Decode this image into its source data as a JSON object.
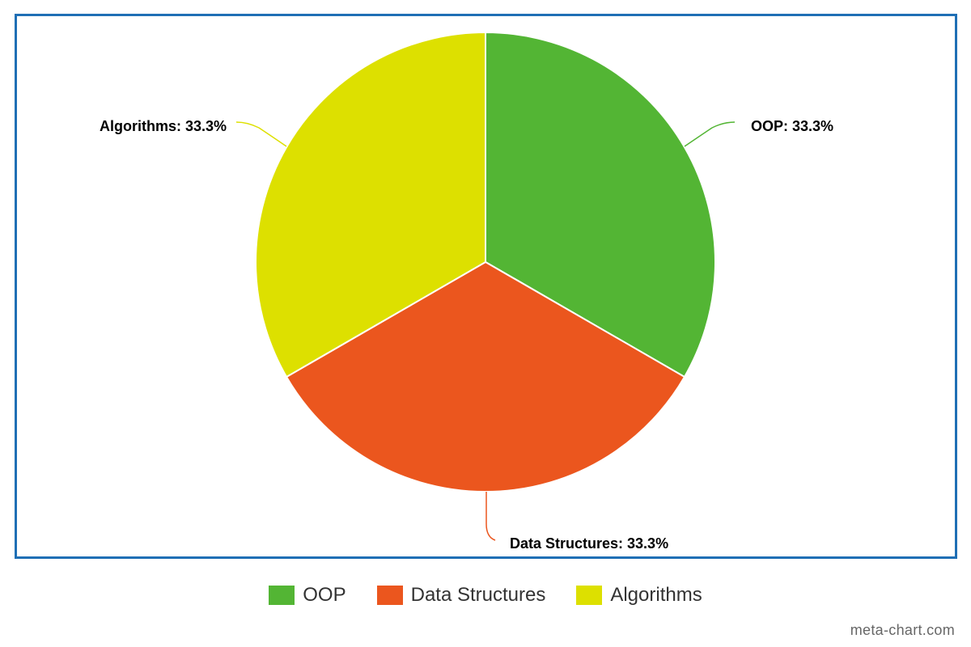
{
  "chart_data": {
    "type": "pie",
    "slices": [
      {
        "name": "OOP",
        "value": 33.3,
        "label": "OOP: 33.3%",
        "color": "#53b534"
      },
      {
        "name": "Data Structures",
        "value": 33.3,
        "label": "Data Structures: 33.3%",
        "color": "#eb561e"
      },
      {
        "name": "Algorithms",
        "value": 33.3,
        "label": "Algorithms: 33.3%",
        "color": "#dde000"
      }
    ],
    "legend_position": "bottom"
  },
  "legend": {
    "items": [
      {
        "label": "OOP",
        "color": "#53b534"
      },
      {
        "label": "Data Structures",
        "color": "#eb561e"
      },
      {
        "label": "Algorithms",
        "color": "#dde000"
      }
    ]
  },
  "watermark": "meta-chart.com",
  "frame_color": "#1f6fb5"
}
